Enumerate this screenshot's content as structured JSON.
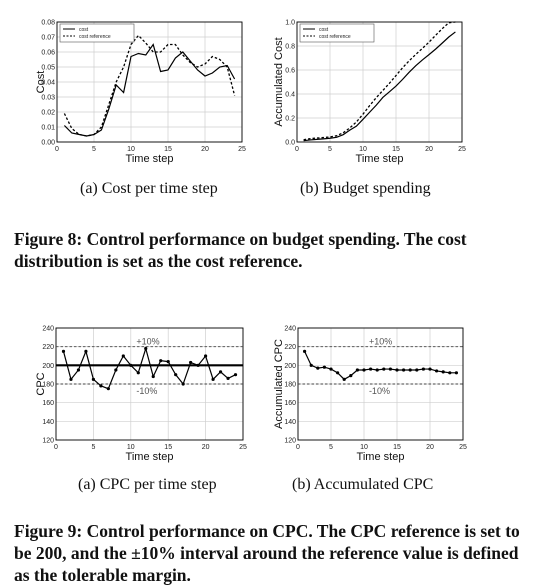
{
  "figure8": {
    "caption": "Figure 8: Control performance on budget spending. The cost distribution is set as the cost reference.",
    "subcaption_a": "(a) Cost per time step",
    "subcaption_b": "(b) Budget spending"
  },
  "figure9": {
    "caption": "Figure 9: Control performance on CPC. The CPC reference is set to be 200, and the ±10% interval around the reference value is defined as the tolerable margin.",
    "subcaption_a": "(a) CPC per time step",
    "subcaption_b": "(b) Accumulated CPC"
  },
  "chart_data": [
    {
      "id": "cost",
      "type": "line",
      "xlabel": "Time step",
      "ylabel": "Cost",
      "xlim": [
        0,
        25
      ],
      "ylim": [
        0,
        0.08
      ],
      "xticks": [
        0,
        5,
        10,
        15,
        20,
        25
      ],
      "yticks": [
        0.0,
        0.01,
        0.02,
        0.03,
        0.04,
        0.05,
        0.06,
        0.07,
        0.08
      ],
      "ytick_labels": [
        "0.00",
        "0.01",
        "0.02",
        "0.03",
        "0.04",
        "0.05",
        "0.06",
        "0.07",
        "0.08"
      ],
      "legend_position": "top-left",
      "series": [
        {
          "name": "cost",
          "style": "solid",
          "x": [
            1,
            2,
            3,
            4,
            5,
            6,
            7,
            8,
            9,
            10,
            11,
            12,
            13,
            14,
            15,
            16,
            17,
            18,
            19,
            20,
            21,
            22,
            23,
            24
          ],
          "y": [
            0.011,
            0.006,
            0.005,
            0.004,
            0.005,
            0.008,
            0.022,
            0.038,
            0.033,
            0.057,
            0.059,
            0.058,
            0.065,
            0.047,
            0.048,
            0.056,
            0.06,
            0.054,
            0.048,
            0.044,
            0.046,
            0.05,
            0.051,
            0.042
          ]
        },
        {
          "name": "cost reference",
          "style": "dashed",
          "x": [
            1,
            2,
            3,
            4,
            5,
            6,
            7,
            8,
            9,
            10,
            11,
            12,
            13,
            14,
            15,
            16,
            17,
            18,
            19,
            20,
            21,
            22,
            23,
            24
          ],
          "y": [
            0.019,
            0.009,
            0.005,
            0.004,
            0.005,
            0.01,
            0.025,
            0.04,
            0.05,
            0.065,
            0.071,
            0.066,
            0.06,
            0.06,
            0.065,
            0.065,
            0.058,
            0.053,
            0.05,
            0.052,
            0.057,
            0.055,
            0.05,
            0.031
          ]
        }
      ]
    },
    {
      "id": "budget",
      "type": "line",
      "xlabel": "Time step",
      "ylabel": "Accumulated Cost",
      "xlim": [
        0,
        25
      ],
      "ylim": [
        0,
        1.0
      ],
      "xticks": [
        0,
        5,
        10,
        15,
        20,
        25
      ],
      "yticks": [
        0.0,
        0.2,
        0.4,
        0.6,
        0.8,
        1.0
      ],
      "ytick_labels": [
        "0.0",
        "0.2",
        "0.4",
        "0.6",
        "0.8",
        "1.0"
      ],
      "legend_position": "top-left",
      "series": [
        {
          "name": "cost",
          "style": "solid",
          "x": [
            1,
            2,
            3,
            4,
            5,
            6,
            7,
            8,
            9,
            10,
            11,
            12,
            13,
            14,
            15,
            16,
            17,
            18,
            19,
            20,
            21,
            22,
            23,
            24
          ],
          "y": [
            0.011,
            0.017,
            0.022,
            0.026,
            0.031,
            0.039,
            0.061,
            0.099,
            0.132,
            0.189,
            0.248,
            0.306,
            0.371,
            0.418,
            0.466,
            0.522,
            0.582,
            0.636,
            0.684,
            0.728,
            0.774,
            0.824,
            0.875,
            0.917
          ]
        },
        {
          "name": "cost reference",
          "style": "dashed",
          "x": [
            1,
            2,
            3,
            4,
            5,
            6,
            7,
            8,
            9,
            10,
            11,
            12,
            13,
            14,
            15,
            16,
            17,
            18,
            19,
            20,
            21,
            22,
            23,
            24
          ],
          "y": [
            0.019,
            0.028,
            0.033,
            0.037,
            0.042,
            0.052,
            0.077,
            0.117,
            0.167,
            0.232,
            0.303,
            0.369,
            0.429,
            0.489,
            0.554,
            0.619,
            0.677,
            0.73,
            0.78,
            0.832,
            0.889,
            0.944,
            0.994,
            1.0
          ]
        }
      ]
    },
    {
      "id": "cpc",
      "type": "line",
      "xlabel": "Time step",
      "ylabel": "CPC",
      "xlim": [
        0,
        25
      ],
      "ylim": [
        120,
        240
      ],
      "xticks": [
        0,
        5,
        10,
        15,
        20,
        25
      ],
      "yticks": [
        120,
        140,
        160,
        180,
        200,
        220,
        240
      ],
      "reference": 200,
      "upper_band": 220,
      "lower_band": 180,
      "upper_label": "+10%",
      "lower_label": "-10%",
      "series": [
        {
          "name": "CPC",
          "style": "solid-markers",
          "x": [
            1,
            2,
            3,
            4,
            5,
            6,
            7,
            8,
            9,
            10,
            11,
            12,
            13,
            14,
            15,
            16,
            17,
            18,
            19,
            20,
            21,
            22,
            23,
            24
          ],
          "y": [
            215,
            185,
            195,
            215,
            185,
            178,
            175,
            195,
            210,
            200,
            192,
            218,
            188,
            205,
            204,
            190,
            180,
            203,
            200,
            210,
            185,
            193,
            186,
            190
          ]
        }
      ]
    },
    {
      "id": "acc_cpc",
      "type": "line",
      "xlabel": "Time step",
      "ylabel": "Accumulated CPC",
      "xlim": [
        0,
        25
      ],
      "ylim": [
        120,
        240
      ],
      "xticks": [
        0,
        5,
        10,
        15,
        20,
        25
      ],
      "yticks": [
        120,
        140,
        160,
        180,
        200,
        220,
        240
      ],
      "upper_band": 220,
      "lower_band": 180,
      "upper_label": "+10%",
      "lower_label": "-10%",
      "series": [
        {
          "name": "Accumulated CPC",
          "style": "solid-markers",
          "x": [
            1,
            2,
            3,
            4,
            5,
            6,
            7,
            8,
            9,
            10,
            11,
            12,
            13,
            14,
            15,
            16,
            17,
            18,
            19,
            20,
            21,
            22,
            23,
            24
          ],
          "y": [
            215,
            200,
            197,
            198,
            196,
            192,
            185,
            189,
            195,
            195,
            196,
            195,
            196,
            196,
            195,
            195,
            195,
            195,
            196,
            196,
            194,
            193,
            192,
            192
          ]
        }
      ]
    }
  ]
}
